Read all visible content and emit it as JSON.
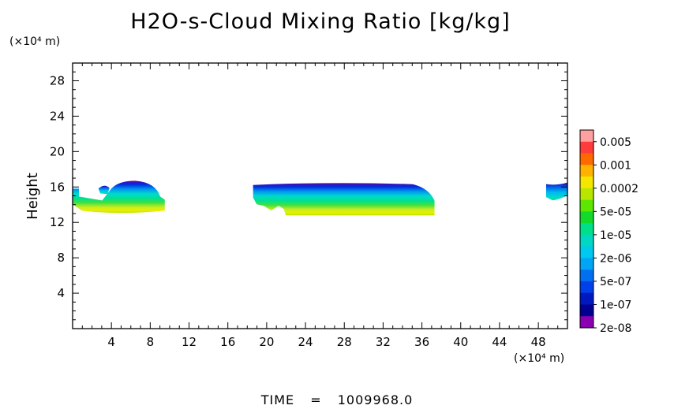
{
  "chart_data": {
    "type": "heatmap",
    "title": "H2O-s-Cloud Mixing Ratio [kg/kg]",
    "ylabel": "Height",
    "xlabel": "",
    "x_unit": "(×10⁴ m)",
    "y_unit": "(×10⁴ m)",
    "xlim": [
      0,
      51
    ],
    "ylim": [
      0,
      30
    ],
    "x_ticks": [
      4,
      8,
      12,
      16,
      20,
      24,
      28,
      32,
      36,
      40,
      44,
      48
    ],
    "y_ticks": [
      4,
      8,
      12,
      16,
      20,
      24,
      28
    ],
    "grid": false,
    "colorbar": {
      "levels": [
        "0.005",
        "0.001",
        "0.0002",
        "5e-05",
        "1e-05",
        "2e-06",
        "5e-07",
        "1e-07",
        "2e-08"
      ],
      "colors_top_to_bottom": [
        "#ffa0a0",
        "#ff3b3b",
        "#ff6a00",
        "#ffb300",
        "#f5e600",
        "#b8e600",
        "#5ce600",
        "#13d92b",
        "#00e08a",
        "#00d8c4",
        "#00c8ef",
        "#00a6f5",
        "#0070f0",
        "#0040e8",
        "#0018c0",
        "#000090",
        "#8a00b0"
      ]
    },
    "cloud_regions": [
      {
        "x_start": 0,
        "x_end": 9.5,
        "bottom": 12.8,
        "top": 16.7,
        "peak_level": "5e-05"
      },
      {
        "x_start": 18.6,
        "x_end": 37.3,
        "bottom": 12.8,
        "top": 16.4,
        "peak_level": "5e-05"
      },
      {
        "x_start": 48.8,
        "x_end": 51,
        "bottom": 14.5,
        "top": 16.5,
        "peak_level": "2e-06"
      }
    ]
  },
  "footer": {
    "time_label": "TIME",
    "equals": "=",
    "time_value": "1009968.0"
  }
}
